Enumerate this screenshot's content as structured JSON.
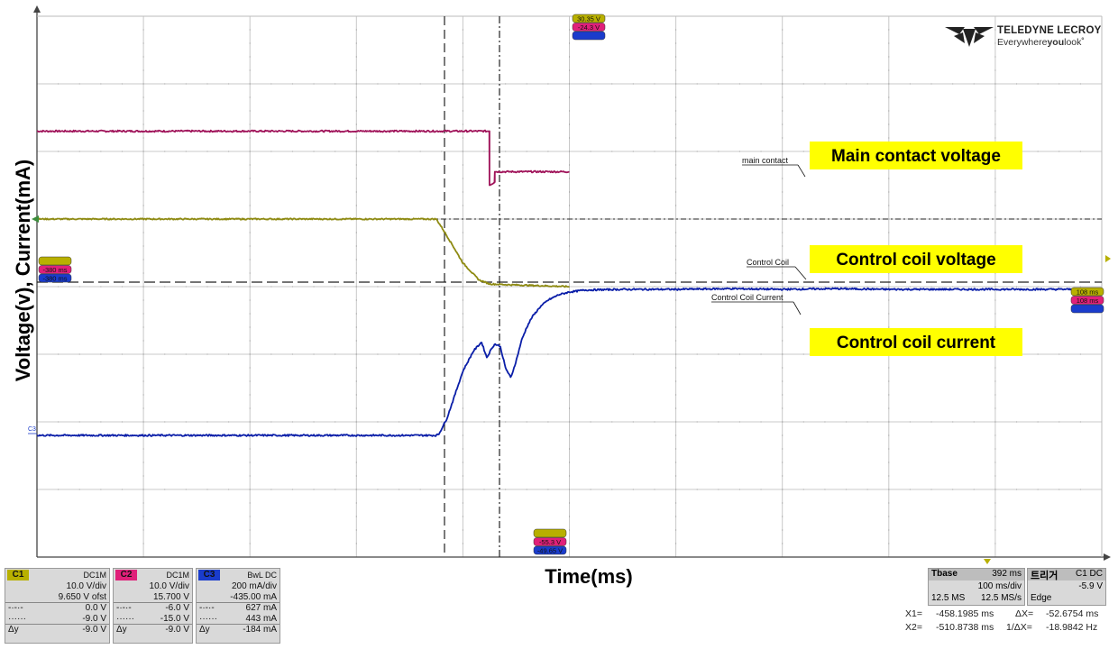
{
  "logo": {
    "brand": "TELEDYNE LECROY",
    "tagline_pre": "Everywhere",
    "tagline_bold": "you",
    "tagline_post": "look"
  },
  "chart_data": {
    "type": "line",
    "xlabel": "Time(ms)",
    "ylabel": "Voltage(v), Current(mA)",
    "grid": true,
    "x_per_div_ms": 100,
    "x_divs": 10,
    "y_divs": 8,
    "series": [
      {
        "name": "main contact",
        "x": [
          0,
          8.5,
          8.5,
          8.6,
          8.6,
          10
        ],
        "y": [
          6.3,
          6.3,
          5.5,
          5.55,
          5.7,
          5.7
        ],
        "color": "#a0145a",
        "noise": 0.012
      },
      {
        "name": "Control Coil",
        "x": [
          0,
          7.5,
          7.6,
          7.8,
          8.0,
          8.3,
          8.5,
          8.8,
          10
        ],
        "y": [
          5.0,
          5.0,
          4.88,
          4.62,
          4.35,
          4.1,
          4.04,
          4.03,
          4.0
        ],
        "color": "#8e8a12",
        "noise": 0.01
      },
      {
        "name": "Control Coil Current",
        "x": [
          0,
          7.5,
          7.55,
          7.7,
          7.85,
          8.0,
          8.2,
          8.35,
          8.45,
          8.55,
          8.6,
          8.7,
          8.8,
          8.9,
          9.0,
          9.1,
          9.2,
          9.3,
          9.45,
          9.6,
          9.8,
          10.0,
          10.3,
          11,
          12,
          13,
          14,
          15,
          16,
          17,
          18,
          19,
          19.8
        ],
        "y": [
          1.8,
          1.8,
          1.82,
          2.05,
          2.4,
          2.75,
          3.05,
          3.18,
          2.95,
          3.1,
          3.15,
          3.12,
          2.8,
          2.65,
          2.9,
          3.2,
          3.4,
          3.55,
          3.7,
          3.8,
          3.88,
          3.92,
          3.95,
          3.96,
          3.96,
          3.97,
          3.96,
          3.97,
          3.96,
          3.96,
          3.96,
          3.96,
          3.96
        ],
        "color": "#0a1ea8",
        "noise": 0.012
      }
    ],
    "trace_labels": {
      "main": "main contact",
      "coil": "Control Coil",
      "current": "Control Coil Current"
    },
    "annotations": [
      {
        "text": "Main contact voltage"
      },
      {
        "text": "Control coil voltage"
      },
      {
        "text": "Control coil current"
      }
    ],
    "marker_tags": {
      "top": [
        "30.35 V",
        "-24.3 V",
        ""
      ],
      "left": [
        "",
        "-380 ms",
        "-380 ms"
      ],
      "bottom": [
        "",
        "-55.3 V",
        "-49.65 V"
      ],
      "right": [
        "108 ms",
        "108 ms",
        ""
      ]
    }
  },
  "channels": [
    {
      "id": "C1",
      "coupling": "DC1M",
      "color": "#b8b000",
      "rows": [
        [
          "",
          "10.0 V/div"
        ],
        [
          "",
          "9.650 V ofst"
        ],
        [
          "-·-·-",
          "0.0 V"
        ],
        [
          "······",
          "-9.0 V"
        ],
        [
          "Δy",
          "-9.0 V"
        ]
      ]
    },
    {
      "id": "C2",
      "coupling": "DC1M",
      "color": "#e0207a",
      "rows": [
        [
          "",
          "10.0 V/div"
        ],
        [
          "",
          "15.700 V"
        ],
        [
          "-·-·-",
          "-6.0 V"
        ],
        [
          "······",
          "-15.0 V"
        ],
        [
          "Δy",
          "-9.0 V"
        ]
      ]
    },
    {
      "id": "C3",
      "coupling": "BwL DC",
      "color": "#1a3ccc",
      "rows": [
        [
          "",
          "200 mA/div"
        ],
        [
          "",
          "-435.00 mA"
        ],
        [
          "-·-·-",
          "627 mA"
        ],
        [
          "······",
          "443 mA"
        ],
        [
          "Δy",
          "-184 mA"
        ]
      ]
    }
  ],
  "timebase": {
    "label": "Tbase",
    "value": "392 ms",
    "per_div": "100 ms/div",
    "samples": "12.5 MS",
    "rate": "12.5 MS/s"
  },
  "trigger": {
    "label": "트리거",
    "channel": "C1 DC",
    "level": "-5.9 V",
    "mode": "Edge"
  },
  "cursors": {
    "x1_label": "X1=",
    "x1": "-458.1985 ms",
    "dx_label": "ΔX=",
    "dx": "-52.6754 ms",
    "x2_label": "X2=",
    "x2": "-510.8738 ms",
    "inv_label": "1/ΔX=",
    "inv": "-18.9842 Hz"
  },
  "colors": {
    "grid": "#c8c8c8",
    "axis": "#444444",
    "highlight": "#ffff00"
  }
}
